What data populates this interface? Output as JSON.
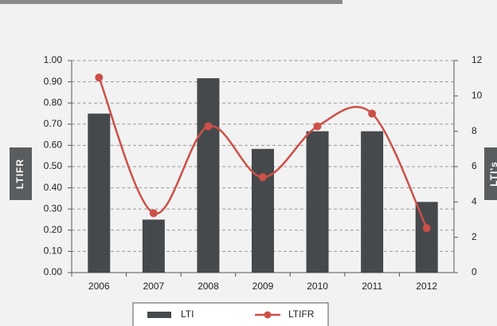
{
  "chart_data": {
    "type": "bar-line",
    "categories": [
      "2006",
      "2007",
      "2008",
      "2009",
      "2010",
      "2011",
      "2012"
    ],
    "series": [
      {
        "name": "LTI",
        "type": "bar",
        "axis": "y2",
        "color": "#45494b",
        "values": [
          9,
          3,
          11,
          7,
          8,
          8,
          4
        ]
      },
      {
        "name": "LTIFR",
        "type": "line",
        "axis": "y",
        "color": "#cc5048",
        "values": [
          0.92,
          0.28,
          0.69,
          0.45,
          0.69,
          0.75,
          0.21
        ]
      }
    ],
    "ylabel": "LTIFR",
    "y2label": "LTI's",
    "ylim": [
      0,
      1
    ],
    "yticks": [
      {
        "value": 0,
        "label": "0.00"
      },
      {
        "value": 0.1,
        "label": "0.10"
      },
      {
        "value": 0.2,
        "label": "0.20"
      },
      {
        "value": 0.3,
        "label": "0.30"
      },
      {
        "value": 0.4,
        "label": "0.40"
      },
      {
        "value": 0.5,
        "label": "0.50"
      },
      {
        "value": 0.6,
        "label": "0.60"
      },
      {
        "value": 0.7,
        "label": "0.70"
      },
      {
        "value": 0.8,
        "label": "0.80"
      },
      {
        "value": 0.9,
        "label": "0.90"
      },
      {
        "value": 1,
        "label": "1.00"
      }
    ],
    "y2lim": [
      0,
      12
    ],
    "y2ticks": [
      0,
      2,
      4,
      6,
      8,
      10,
      12
    ],
    "grid": true,
    "legend": "bottom"
  }
}
